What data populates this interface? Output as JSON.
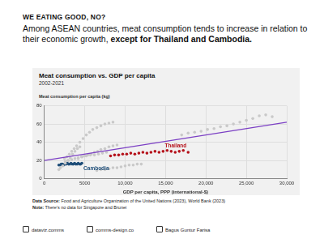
{
  "header": {
    "kicker": "WE EATING GOOD, NO?",
    "headline": "Among ASEAN countries, meat consumption tends to increase in relation to their economic growth,",
    "headline_bold": "except for Thailand and Cambodia."
  },
  "chart_data": {
    "type": "scatter",
    "title": "Meat consumption vs. GDP per capita",
    "subtitle": "2002-2021",
    "y_label": "Meat consumption per capita (kg)",
    "x_label": "GDP per capita, PPP (international-$)",
    "xlim": [
      0,
      30000
    ],
    "xticks": [
      0,
      5000,
      {
        "value": 10000,
        "label": "10,000"
      },
      {
        "value": 15000,
        "label": "15,000"
      },
      {
        "value": 20000,
        "label": "20,000"
      },
      {
        "value": 25000,
        "label": "25,000"
      },
      {
        "value": 30000,
        "label": "30,000"
      }
    ],
    "ylim": [
      0,
      80
    ],
    "yticks": [
      0,
      20,
      40,
      60,
      80
    ],
    "grid": true,
    "series": [
      {
        "color": "#c9c9c9",
        "marker": "circle",
        "x": [
          2500,
          2800,
          3100,
          3400,
          3700,
          4000,
          4400,
          4800,
          5200,
          5600,
          6000,
          6500,
          7000,
          7500,
          8000,
          8500,
          1800,
          2000,
          2300,
          2600,
          2900,
          3200,
          3500,
          3800,
          4100,
          4400,
          2600,
          3000,
          3400,
          3800,
          4200,
          4700,
          5200,
          5700,
          6200,
          6700,
          7200,
          7700,
          4200,
          4600,
          5000,
          5400,
          5800,
          6200,
          6600,
          7000,
          7500,
          8000,
          8500,
          9000,
          6500,
          7000,
          7500,
          8000,
          8500,
          9000,
          9500,
          10000,
          10500,
          11000,
          11500,
          12000,
          17000,
          17800,
          18600,
          19400,
          20200,
          21000,
          21800,
          22600,
          23400,
          24200,
          25000,
          25800,
          26600,
          27400,
          28200
        ],
        "values": [
          22,
          24,
          27,
          30,
          33,
          36,
          40,
          44,
          48,
          51,
          54,
          56,
          58,
          60,
          61,
          62,
          10,
          12,
          14,
          17,
          20,
          23,
          27,
          30,
          33,
          35,
          19,
          20,
          21,
          22,
          23,
          24,
          25,
          26,
          26,
          27,
          28,
          29,
          22,
          24,
          25,
          26,
          27,
          29,
          30,
          32,
          33,
          35,
          36,
          37,
          9,
          10,
          10,
          11,
          12,
          12,
          13,
          14,
          15,
          15,
          16,
          16,
          48,
          50,
          51,
          52,
          54,
          55,
          57,
          58,
          60,
          62,
          64,
          66,
          69,
          70,
          68
        ]
      },
      {
        "name": "Thailand",
        "color": "#b5121b",
        "marker": "circle",
        "x": [
          8200,
          8700,
          9200,
          9700,
          10200,
          10700,
          11200,
          11700,
          12200,
          12700,
          13200,
          13700,
          14200,
          14700,
          15200,
          15700,
          16200,
          16700,
          17200,
          17800
        ],
        "values": [
          25,
          26,
          26,
          27,
          27,
          28,
          27,
          28,
          29,
          28,
          29,
          30,
          29,
          30,
          31,
          30,
          29,
          30,
          31,
          29
        ]
      },
      {
        "name": "Cambodia",
        "color": "#1f4e79",
        "marker": "circle",
        "x": [
          1800,
          1950,
          2100,
          2250,
          2400,
          2550,
          2700,
          2850,
          3000,
          3150,
          3300,
          3450,
          3600,
          3750,
          3900,
          4050,
          4200,
          4350,
          4500,
          4650
        ],
        "values": [
          15,
          15,
          16,
          16,
          15,
          16,
          16,
          17,
          16,
          16,
          17,
          16,
          16,
          17,
          16,
          16,
          17,
          16,
          16,
          17
        ]
      },
      {
        "type": "line",
        "color": "#7b3fc4",
        "marker": "none",
        "line_style": "solid",
        "x": [
          0,
          30000
        ],
        "values": [
          20,
          62
        ]
      }
    ]
  },
  "footer": {
    "source_label": "Data Source:",
    "source": "Food and Agriculture Organization of the United Nations (2023), World Bank (2023)",
    "note_label": "Note:",
    "note": "There's no data for Singapore and Brunei"
  },
  "credits": [
    "dataviz.comms",
    "comms-design.co",
    "Bagus Guntur Farisa"
  ]
}
